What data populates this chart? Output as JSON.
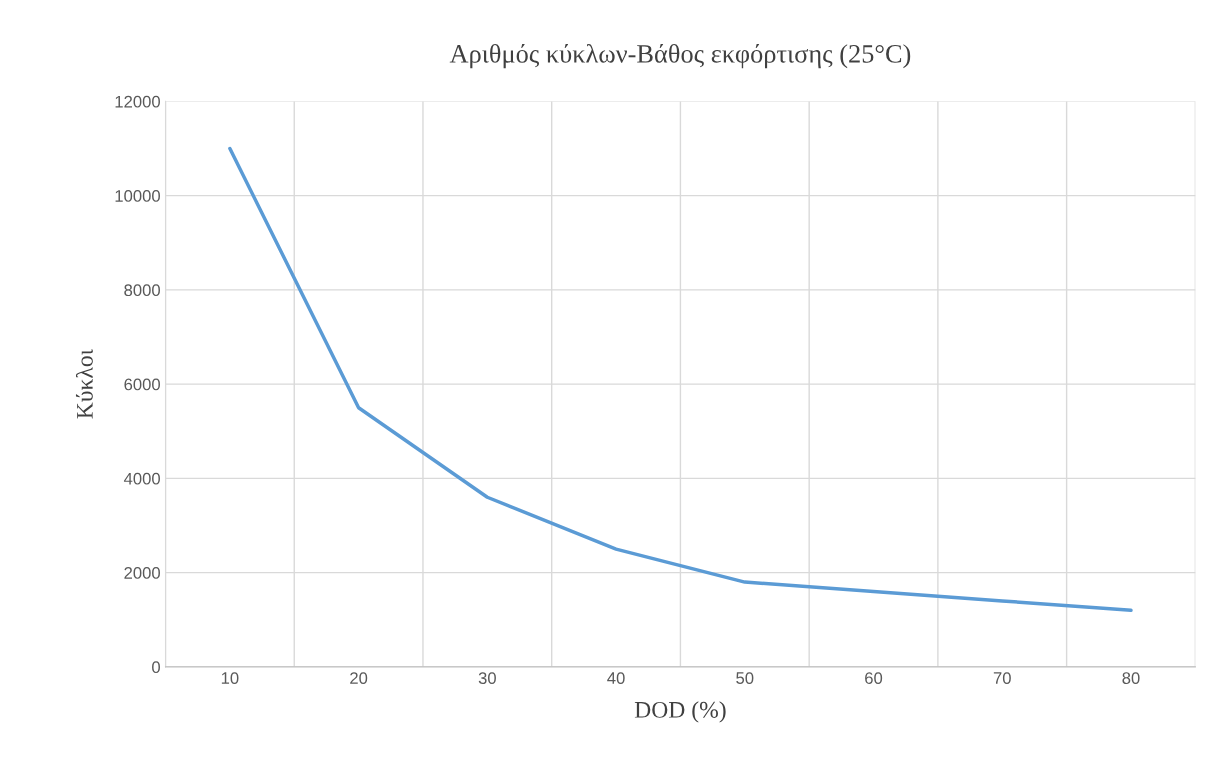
{
  "chart_data": {
    "type": "line",
    "title": "Αριθμός κύκλων-Βάθος εκφόρτισης (25°C)",
    "xlabel": "DOD (%)",
    "ylabel": "Κύκλοι",
    "categories": [
      "10",
      "20",
      "30",
      "40",
      "50",
      "60",
      "70",
      "80"
    ],
    "series": [
      {
        "color": "#5b9bd5",
        "values": [
          11000,
          5500,
          3600,
          2500,
          1800,
          1600,
          1400,
          1200
        ]
      }
    ],
    "ylim": [
      0,
      12000
    ],
    "yticks": [
      0,
      2000,
      4000,
      6000,
      8000,
      10000,
      12000
    ],
    "grid": true,
    "marker": "none",
    "line_style": "solid"
  }
}
